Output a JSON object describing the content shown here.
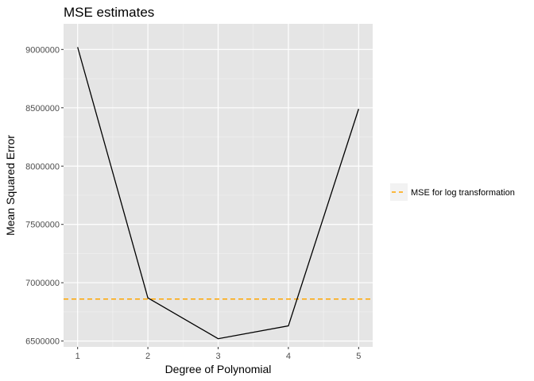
{
  "chart_data": {
    "type": "line",
    "title": "MSE estimates",
    "xlabel": "Degree of Polynomial",
    "ylabel": "Mean Squared Error",
    "x": [
      1,
      2,
      3,
      4,
      5
    ],
    "series": [
      {
        "values": [
          9020000,
          6870000,
          6520000,
          6630000,
          8490000
        ],
        "color": "#000000"
      }
    ],
    "reference_lines": [
      {
        "name": "MSE for log transformation",
        "y": 6860000,
        "color": "#ffa500",
        "style": "dashed"
      }
    ],
    "xlim": [
      0.8,
      5.2
    ],
    "ylim": [
      6450000,
      9220000
    ],
    "x_ticks": [
      1,
      2,
      3,
      4,
      5
    ],
    "x_tick_labels": [
      "1",
      "2",
      "3",
      "4",
      "5"
    ],
    "y_ticks": [
      6500000,
      7000000,
      7500000,
      8000000,
      8500000,
      9000000
    ],
    "y_tick_labels": [
      "6500000",
      "7000000",
      "7500000",
      "8000000",
      "8500000",
      "9000000"
    ],
    "grid": true,
    "panel_background": "#e5e5e5",
    "legend": {
      "placement": "right",
      "entries": [
        "MSE for log transformation"
      ]
    }
  }
}
